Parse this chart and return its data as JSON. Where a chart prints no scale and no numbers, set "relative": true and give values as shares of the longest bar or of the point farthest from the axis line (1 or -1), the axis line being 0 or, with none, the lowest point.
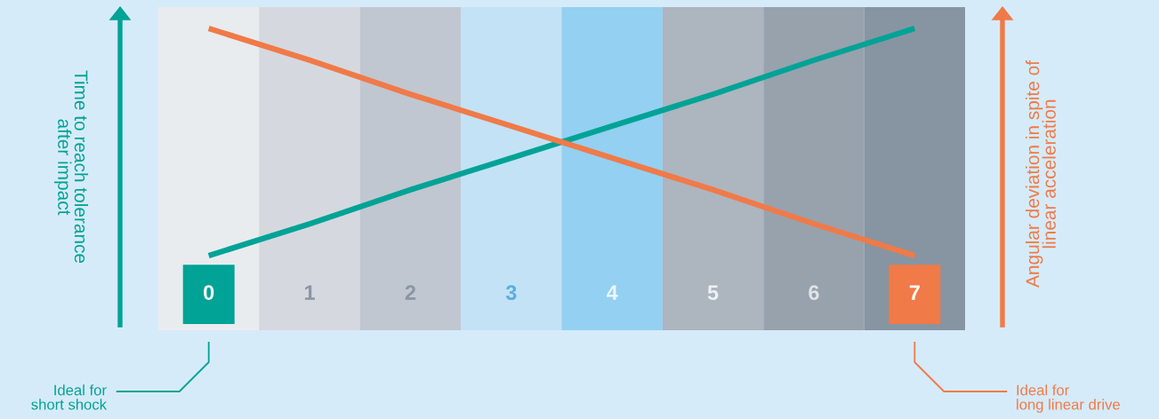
{
  "chart_data": {
    "type": "line",
    "relative": true,
    "categories": [
      "0",
      "1",
      "2",
      "3",
      "4",
      "5",
      "6",
      "7"
    ],
    "series": [
      {
        "color": "#00a396",
        "values": [
          0,
          0.14,
          0.29,
          0.43,
          0.57,
          0.71,
          0.86,
          1
        ]
      },
      {
        "color": "#f07a48",
        "values": [
          1,
          0.86,
          0.71,
          0.57,
          0.43,
          0.29,
          0.14,
          0
        ]
      }
    ],
    "ylabel": "Time to reach tolerance\nafter impact",
    "y2label": "Angular deviation in spite of\nlinear acceleration",
    "annotations": [
      "Ideal for\nshort shock",
      "Ideal for\nlong linear drive"
    ],
    "grid": false,
    "legend": false,
    "tick_labels": "x",
    "marker": "none",
    "line_style": "solid"
  }
}
